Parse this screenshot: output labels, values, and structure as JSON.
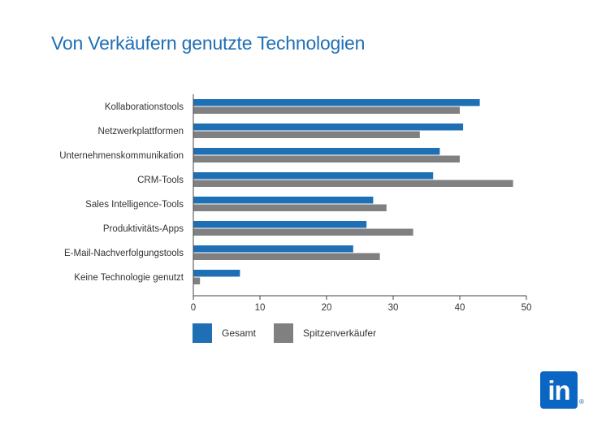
{
  "chart_data": {
    "type": "bar",
    "orientation": "horizontal",
    "title": "Von Verkäufern genutzte Technologien",
    "categories": [
      "Kollaborationstools",
      "Netzwerkplattformen",
      "Unternehmenskommunikation",
      "CRM-Tools",
      "Sales Intelligence-Tools",
      "Produktivitäts-Apps",
      "E-Mail-Nachverfolgungstools",
      "Keine Technologie genutzt"
    ],
    "series": [
      {
        "name": "Gesamt",
        "color": "#1f6fb5",
        "values": [
          43,
          40.5,
          37,
          36,
          27,
          26,
          24,
          7
        ]
      },
      {
        "name": "Spitzenverkäufer",
        "color": "#808080",
        "values": [
          40,
          34,
          40,
          48,
          29,
          33,
          28,
          1
        ]
      }
    ],
    "xlim": [
      0,
      50
    ],
    "xticks": [
      "0",
      "10",
      "20",
      "30",
      "40",
      "50"
    ],
    "grid": false,
    "legend_position": "bottom-left"
  },
  "logo": {
    "text": "in",
    "reg": "®"
  }
}
